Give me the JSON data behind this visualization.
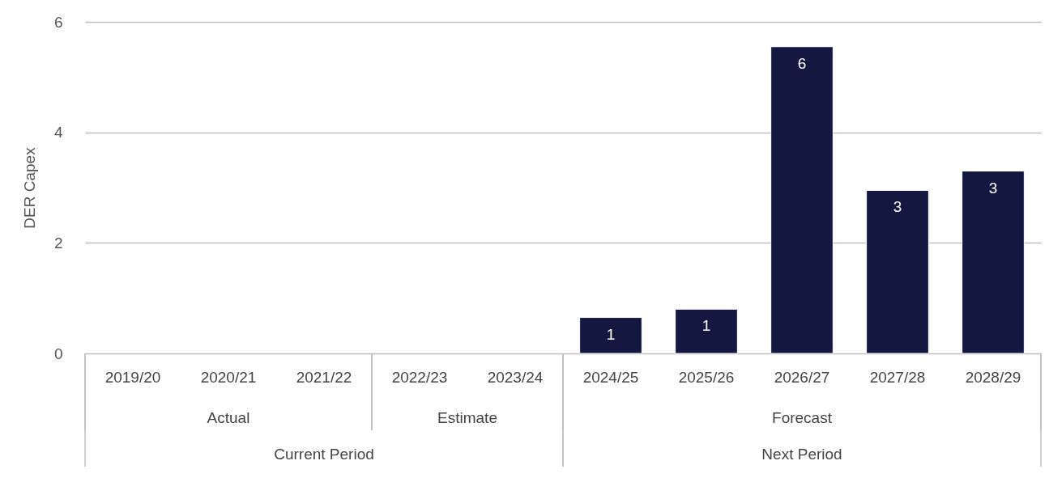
{
  "chart_data": {
    "type": "bar",
    "ylabel": "DER Capex",
    "categories": [
      "2019/20",
      "2020/21",
      "2021/22",
      "2022/23",
      "2023/24",
      "2024/25",
      "2025/26",
      "2026/27",
      "2027/28",
      "2028/29"
    ],
    "values": [
      null,
      null,
      null,
      null,
      null,
      0.65,
      0.8,
      5.55,
      2.95,
      3.3
    ],
    "value_labels": [
      null,
      null,
      null,
      null,
      null,
      "1",
      "1",
      "6",
      "3",
      "3"
    ],
    "color": "#14173f",
    "ylim": [
      0,
      6
    ],
    "yticks": [
      0,
      2,
      4,
      6
    ],
    "grid": "y",
    "annotations": [
      "Actual",
      "Estimate",
      "Forecast",
      "Current Period",
      "Next Period"
    ]
  }
}
